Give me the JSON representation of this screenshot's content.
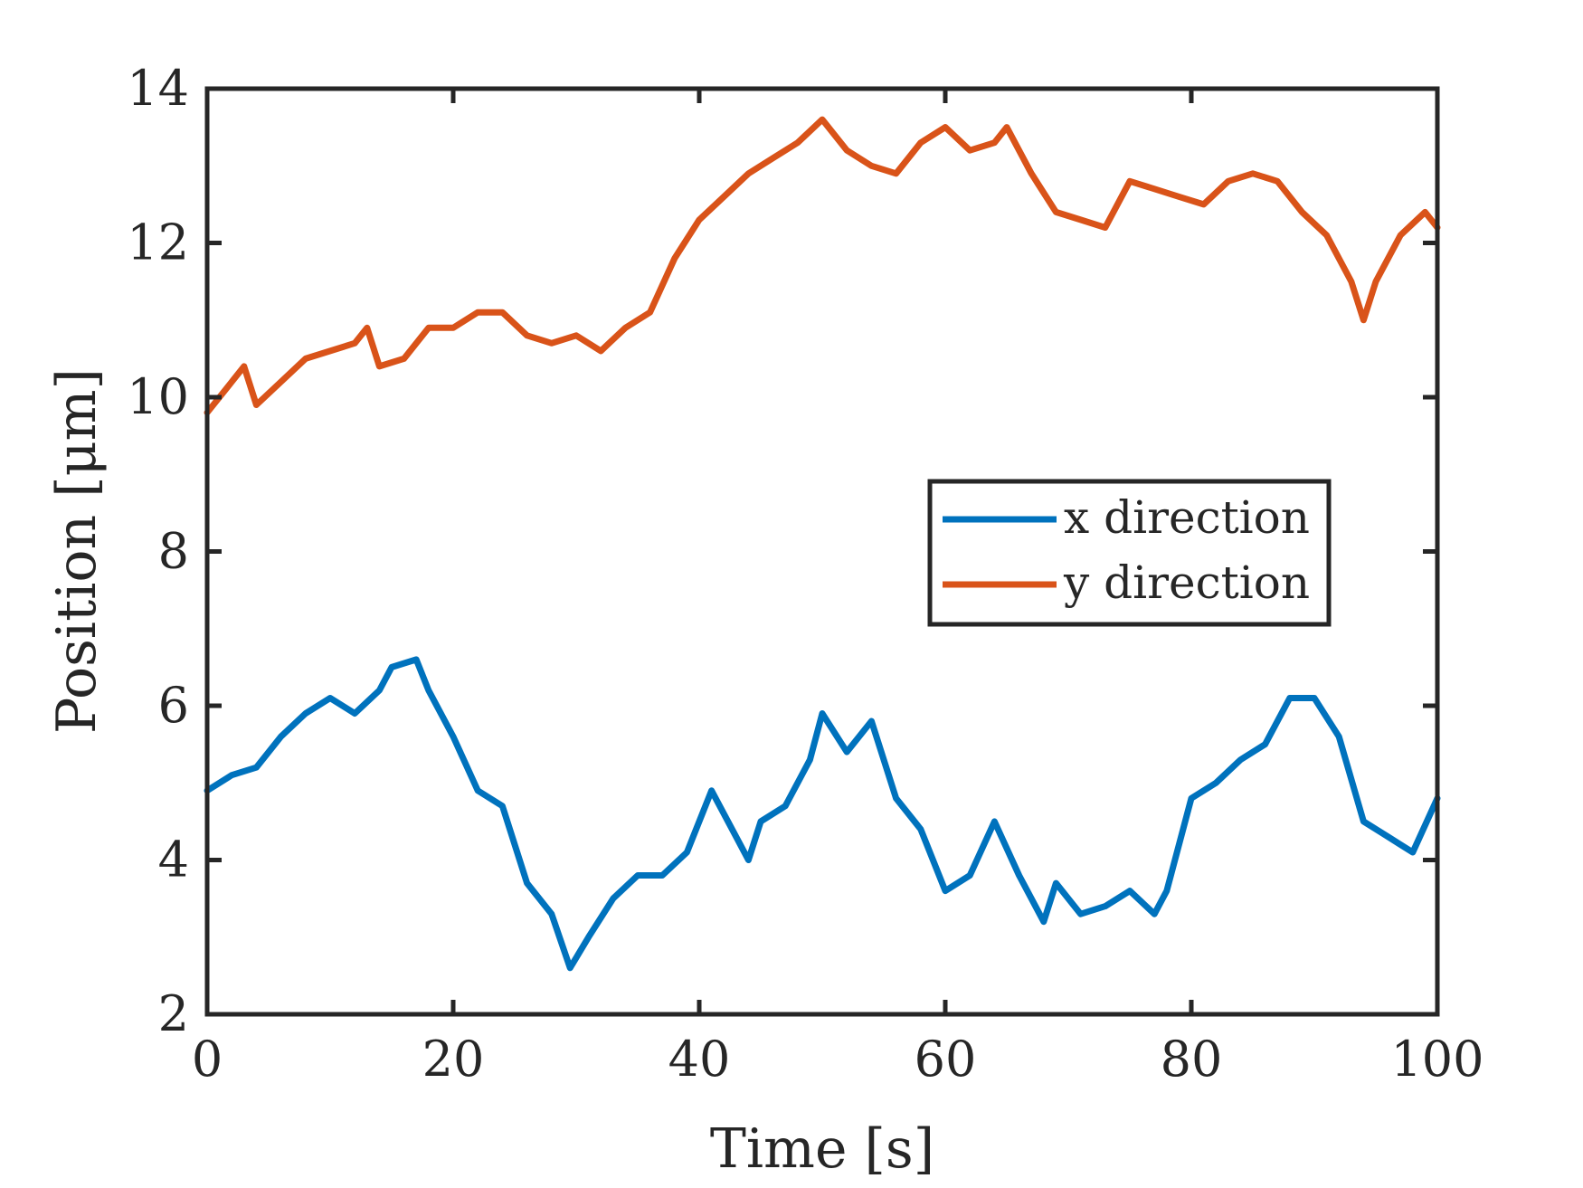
{
  "chart_data": {
    "type": "line",
    "xlabel": "Time [s]",
    "ylabel": "Position [μm]",
    "xlim": [
      0,
      100
    ],
    "ylim": [
      2,
      14
    ],
    "xticks": [
      "0",
      "20",
      "40",
      "60",
      "80",
      "100"
    ],
    "yticks": [
      "2",
      "4",
      "6",
      "8",
      "10",
      "12",
      "14"
    ],
    "grid": false,
    "legend_position": "right-center",
    "series": [
      {
        "name": "x direction",
        "color": "#0072BD",
        "x": [
          0,
          2,
          4,
          6,
          8,
          10,
          12,
          14,
          15,
          17,
          18,
          20,
          22,
          24,
          26,
          28,
          29.5,
          31,
          33,
          35,
          37,
          39,
          41,
          43,
          44,
          45,
          47,
          49,
          50,
          52,
          54,
          56,
          58,
          60,
          62,
          64,
          66,
          68,
          69,
          71,
          73,
          75,
          77,
          78,
          80,
          82,
          84,
          86,
          88,
          90,
          92,
          94,
          96,
          97,
          98,
          100
        ],
        "y": [
          4.9,
          5.1,
          5.2,
          5.6,
          5.9,
          6.1,
          5.9,
          6.2,
          6.5,
          6.6,
          6.2,
          5.6,
          4.9,
          4.7,
          3.7,
          3.3,
          2.6,
          3.0,
          3.5,
          3.8,
          3.8,
          4.1,
          4.9,
          4.3,
          4.0,
          4.5,
          4.7,
          5.3,
          5.9,
          5.4,
          5.8,
          4.8,
          4.4,
          3.6,
          3.8,
          4.5,
          3.8,
          3.2,
          3.7,
          3.3,
          3.4,
          3.6,
          3.3,
          3.6,
          4.8,
          5.0,
          5.3,
          5.5,
          6.1,
          6.1,
          5.6,
          4.5,
          4.3,
          4.2,
          4.1,
          4.8
        ]
      },
      {
        "name": "y direction",
        "color": "#D95319",
        "x": [
          0,
          2,
          3,
          4,
          6,
          8,
          10,
          12,
          13,
          14,
          16,
          18,
          20,
          22,
          24,
          26,
          28,
          30,
          32,
          34,
          36,
          38,
          40,
          42,
          44,
          46,
          48,
          50,
          52,
          54,
          56,
          58,
          60,
          62,
          64,
          65,
          67,
          69,
          71,
          73,
          75,
          77,
          79,
          81,
          83,
          85,
          87,
          89,
          91,
          93,
          94,
          95,
          97,
          99,
          100
        ],
        "y": [
          9.8,
          10.2,
          10.4,
          9.9,
          10.2,
          10.5,
          10.6,
          10.7,
          10.9,
          10.4,
          10.5,
          10.9,
          10.9,
          11.1,
          11.1,
          10.8,
          10.7,
          10.8,
          10.6,
          10.9,
          11.1,
          11.8,
          12.3,
          12.6,
          12.9,
          13.1,
          13.3,
          13.6,
          13.2,
          13.0,
          12.9,
          13.3,
          13.5,
          13.2,
          13.3,
          13.5,
          12.9,
          12.4,
          12.3,
          12.2,
          12.8,
          12.7,
          12.6,
          12.5,
          12.8,
          12.9,
          12.8,
          12.4,
          12.1,
          11.5,
          11.0,
          11.5,
          12.1,
          12.4,
          12.2
        ]
      }
    ]
  }
}
